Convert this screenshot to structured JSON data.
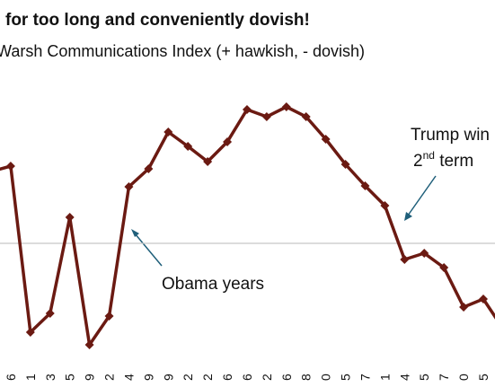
{
  "chart_data": {
    "type": "line",
    "title": "for too long and conveniently dovish!",
    "subtitle": "Warsh Communications Index (+ hawkish, - dovish)",
    "categories": [
      null,
      "6",
      "1",
      "3",
      "5",
      "9",
      "2",
      "4",
      "9",
      "9",
      "2",
      "2",
      "6",
      "6",
      "2",
      "6",
      "8",
      "0",
      "5",
      "7",
      "1",
      "4",
      "5",
      "7",
      "0",
      "5",
      null
    ],
    "series": [
      {
        "name": null,
        "color": "#6b1a12",
        "values": [
          1.6,
          1.72,
          -1.98,
          -1.56,
          0.58,
          -2.26,
          -1.62,
          1.26,
          1.66,
          2.48,
          2.16,
          1.82,
          2.26,
          2.98,
          2.82,
          3.04,
          2.82,
          2.32,
          1.76,
          1.28,
          0.84,
          -0.36,
          -0.22,
          -0.54,
          -1.42,
          -1.24,
          -1.9
        ]
      }
    ],
    "ylim": [
      -3.2,
      3.6
    ],
    "annotations": [
      {
        "text": "Obama years"
      },
      {
        "text": "Trump win"
      },
      {
        "text": "2",
        "sup": "nd",
        "rest": " term"
      }
    ]
  }
}
